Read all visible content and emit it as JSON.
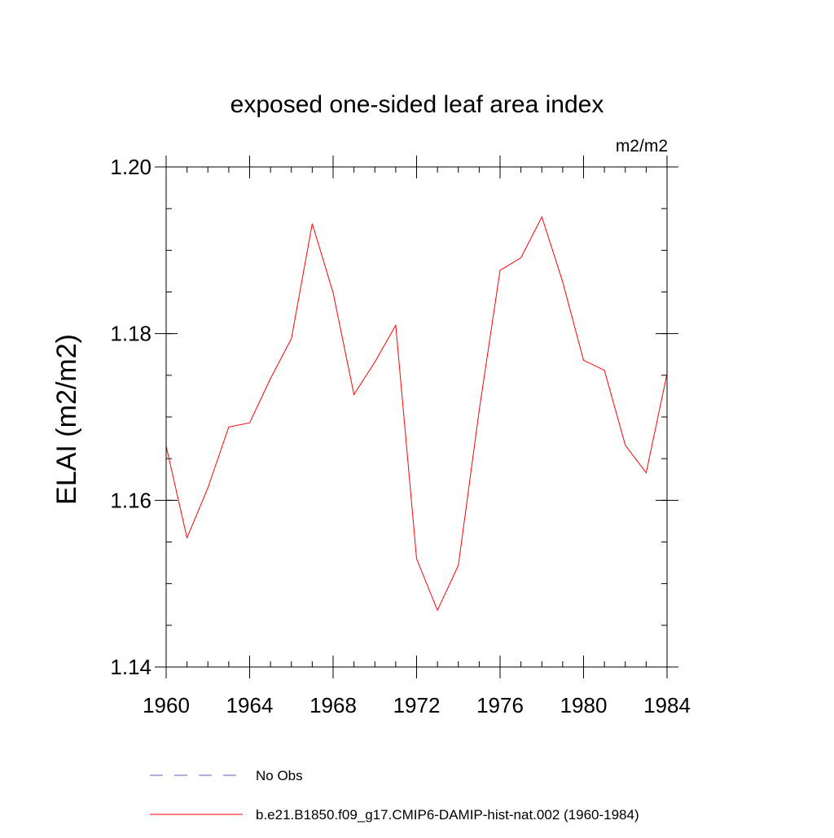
{
  "chart_data": {
    "type": "line",
    "title": "exposed one-sided leaf area index",
    "units": "m2/m2",
    "xlabel": "",
    "ylabel": "ELAI  (m2/m2)",
    "xlim": [
      1960,
      1984
    ],
    "ylim": [
      1.14,
      1.2
    ],
    "x_ticks": [
      1960,
      1964,
      1968,
      1972,
      1976,
      1980,
      1984
    ],
    "x_tick_labels": [
      "1960",
      "1964",
      "1968",
      "1972",
      "1976",
      "1980",
      "1984"
    ],
    "y_ticks": [
      1.14,
      1.16,
      1.18,
      1.2
    ],
    "y_tick_labels": [
      "1.14",
      "1.16",
      "1.18",
      "1.20"
    ],
    "y_minor_step": 0.005,
    "x_minor_step": 1,
    "grid": false,
    "legend_position": "bottom",
    "series": [
      {
        "name": "No Obs",
        "color": "#6a5acd",
        "dash": "dashed",
        "x": [],
        "values": []
      },
      {
        "name": "b.e21.B1850.f09_g17.CMIP6-DAMIP-hist-nat.002 (1960-1984)",
        "color": "#ff0000",
        "dash": "solid",
        "x": [
          1960,
          1961,
          1962,
          1963,
          1964,
          1965,
          1966,
          1967,
          1968,
          1969,
          1970,
          1971,
          1972,
          1973,
          1974,
          1975,
          1976,
          1977,
          1978,
          1979,
          1980,
          1981,
          1982,
          1983,
          1984
        ],
        "values": [
          1.1665,
          1.1555,
          1.1615,
          1.1688,
          1.1693,
          1.1746,
          1.1794,
          1.1932,
          1.1849,
          1.1727,
          1.1766,
          1.181,
          1.153,
          1.1468,
          1.1522,
          1.1708,
          1.1876,
          1.1891,
          1.194,
          1.1862,
          1.1768,
          1.1756,
          1.1666,
          1.1633,
          1.1752
        ]
      }
    ]
  }
}
